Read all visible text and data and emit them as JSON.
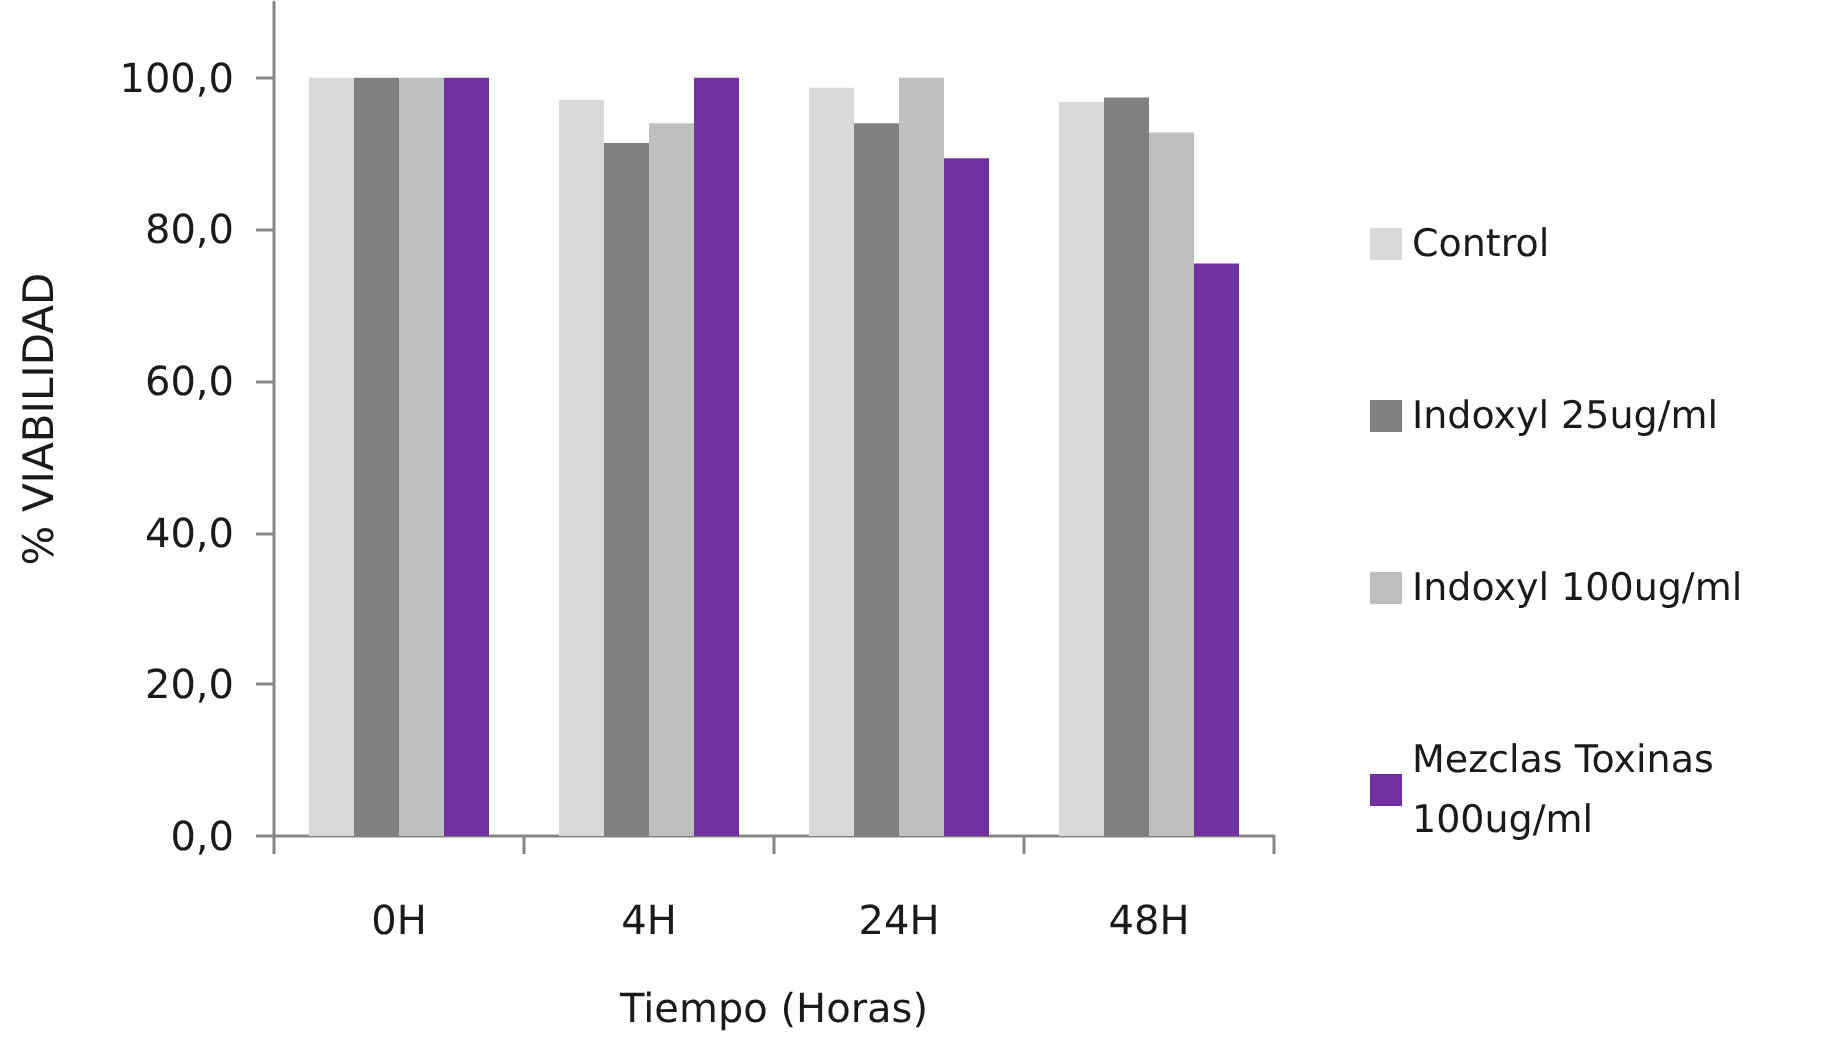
{
  "chart_data": {
    "type": "bar",
    "xlabel": "Tiempo (Horas)",
    "ylabel": "% VIABILIDAD",
    "categories": [
      "0H",
      "4H",
      "24H",
      "48H"
    ],
    "series": [
      {
        "name": "Control",
        "color": "#d9d9d9",
        "values": [
          100,
          97.1,
          98.7,
          96.8
        ]
      },
      {
        "name": "Indoxyl 25ug/ml",
        "color": "#808080",
        "values": [
          100,
          91.4,
          94.0,
          97.4
        ]
      },
      {
        "name": "Indoxyl 100ug/ml",
        "color": "#bfbfbf",
        "values": [
          100,
          94.0,
          100,
          92.8
        ]
      },
      {
        "name": "Mezclas Toxinas 100ug/ml",
        "color": "#7030a0",
        "values": [
          100,
          100,
          89.4,
          75.5
        ]
      }
    ],
    "ylim": [
      0,
      110
    ],
    "yticks": [
      {
        "value": 0,
        "label": "0,0"
      },
      {
        "value": 20,
        "label": "20,0"
      },
      {
        "value": 40,
        "label": "40,0"
      },
      {
        "value": 60,
        "label": "60,0"
      },
      {
        "value": 80,
        "label": "80,0"
      },
      {
        "value": 100,
        "label": "100,0"
      }
    ],
    "grid": false,
    "legend": "right"
  }
}
